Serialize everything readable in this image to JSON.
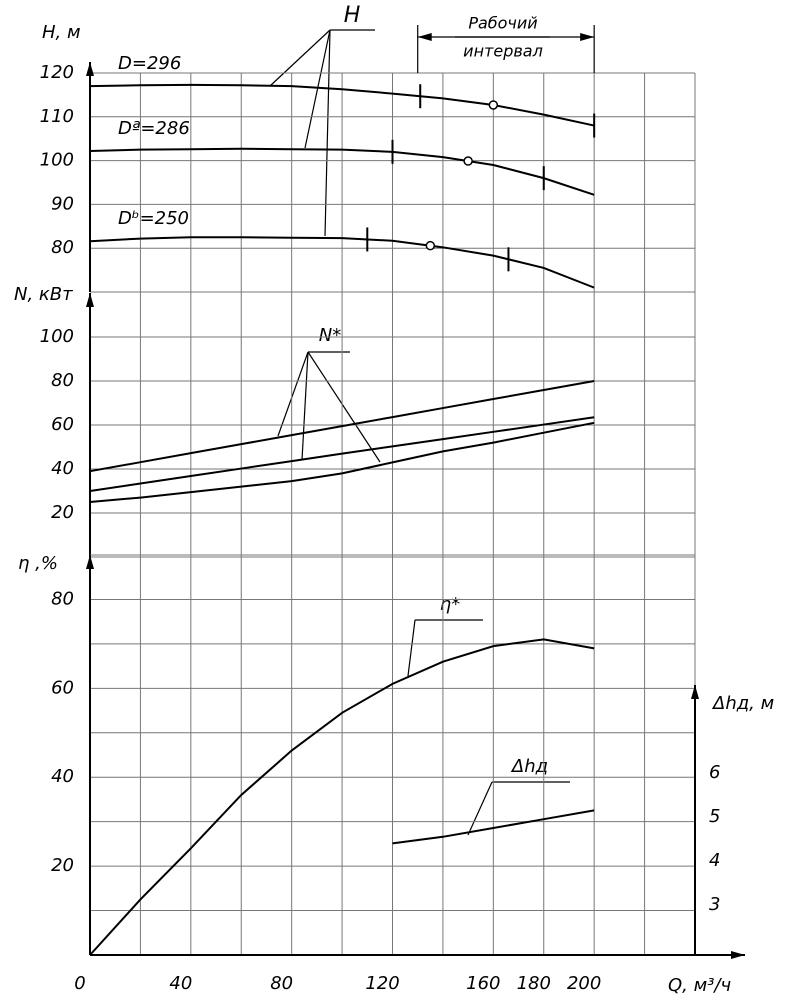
{
  "chart_data": [
    {
      "type": "line",
      "ylabel": "H, м",
      "label": "H",
      "ylim": [
        70,
        120
      ],
      "yticks": [
        80,
        90,
        100,
        110,
        120
      ],
      "annotation": [
        "Рабочий",
        "интервал"
      ],
      "interval": [
        130,
        200
      ],
      "x": [
        0,
        20,
        40,
        60,
        80,
        100,
        120,
        140,
        160,
        180,
        200
      ],
      "series": [
        {
          "name": "D=296",
          "values": [
            117,
            117.2,
            117.3,
            117.2,
            117,
            116.3,
            115.3,
            114.2,
            112.7,
            110.5,
            108
          ],
          "range_marks": [
            131,
            200
          ],
          "optimum": 160
        },
        {
          "name": "Dª=286",
          "values": [
            102.2,
            102.5,
            102.6,
            102.7,
            102.6,
            102.5,
            102,
            100.8,
            99,
            96,
            92.2
          ],
          "range_marks": [
            120,
            180
          ],
          "optimum": 150
        },
        {
          "name": "Dᵇ=250",
          "values": [
            81.6,
            82.2,
            82.5,
            82.5,
            82.4,
            82.3,
            81.7,
            80.2,
            78.3,
            75.5,
            71
          ],
          "range_marks": [
            110,
            166
          ],
          "optimum": 135
        }
      ]
    },
    {
      "type": "line",
      "ylabel": "N, кВт",
      "label": "N*",
      "ylim": [
        0,
        120
      ],
      "yticks": [
        20,
        40,
        60,
        80,
        100
      ],
      "x": [
        0,
        20,
        40,
        60,
        80,
        100,
        120,
        140,
        160,
        180,
        200
      ],
      "series": [
        {
          "values": [
            39,
            43.1,
            47.2,
            51.3,
            55.4,
            59.5,
            63.6,
            67.7,
            71.8,
            75.9,
            80
          ]
        },
        {
          "values": [
            30,
            33.4,
            36.8,
            40.2,
            43.6,
            47,
            50.3,
            53.6,
            56.9,
            60.2,
            63.5
          ]
        },
        {
          "values": [
            25,
            27,
            29.5,
            32,
            34.5,
            38,
            43,
            48,
            52,
            56.5,
            61
          ]
        }
      ]
    },
    {
      "type": "line",
      "ylabel": "η ,%",
      "label": "η*",
      "ylim": [
        0,
        90
      ],
      "yticks": [
        20,
        40,
        60,
        80
      ],
      "minor_grid": true,
      "xlabel": "Q, м³/ч",
      "xlim": [
        0,
        240
      ],
      "xticks": [
        0,
        40,
        80,
        120,
        160,
        180,
        200
      ],
      "x": [
        0,
        20,
        40,
        60,
        80,
        100,
        120,
        140,
        160,
        180,
        200
      ],
      "series": [
        {
          "values": [
            0,
            12.5,
            24,
            36,
            46,
            54.5,
            61,
            66,
            69.5,
            71,
            69
          ]
        }
      ]
    },
    {
      "type": "line",
      "ylabel": "Δhд, м",
      "label": "Δhд",
      "ylim": [
        2,
        8
      ],
      "yticks": [
        3,
        4,
        5,
        6
      ],
      "x": [
        120,
        140,
        160,
        180,
        200
      ],
      "series": [
        {
          "values": [
            4.4,
            4.55,
            4.75,
            4.95,
            5.15
          ]
        }
      ]
    }
  ]
}
